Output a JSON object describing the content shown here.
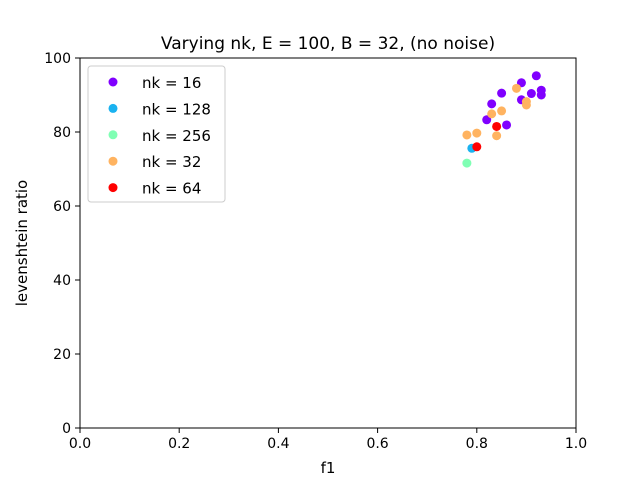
{
  "chart_data": {
    "type": "scatter",
    "title": "Varying nk, E = 100, B = 32, (no noise)",
    "xlabel": "f1",
    "ylabel": "levenshtein ratio",
    "xlim": [
      0.0,
      1.0
    ],
    "ylim": [
      0,
      100
    ],
    "x_ticks": [
      "0.0",
      "0.2",
      "0.4",
      "0.6",
      "0.8",
      "1.0"
    ],
    "x_tick_values": [
      0.0,
      0.2,
      0.4,
      0.6,
      0.8,
      1.0
    ],
    "y_ticks": [
      "0",
      "20",
      "40",
      "60",
      "80",
      "100"
    ],
    "y_tick_values": [
      0,
      20,
      40,
      60,
      80,
      100
    ],
    "grid": false,
    "legend_position": "top-left",
    "series": [
      {
        "name": "nk = 16",
        "color": "#8000ff",
        "points": [
          [
            0.82,
            83.3
          ],
          [
            0.83,
            87.6
          ],
          [
            0.85,
            90.5
          ],
          [
            0.86,
            81.9
          ],
          [
            0.89,
            93.3
          ],
          [
            0.89,
            88.7
          ],
          [
            0.91,
            90.4
          ],
          [
            0.92,
            95.2
          ],
          [
            0.93,
            91.3
          ],
          [
            0.93,
            90.0
          ]
        ]
      },
      {
        "name": "nk = 128",
        "color": "#1ab2f0",
        "points": [
          [
            0.79,
            75.6
          ]
        ]
      },
      {
        "name": "nk = 256",
        "color": "#80ffb4",
        "points": [
          [
            0.78,
            71.6
          ]
        ]
      },
      {
        "name": "nk = 32",
        "color": "#ffb360",
        "points": [
          [
            0.78,
            79.2
          ],
          [
            0.8,
            79.7
          ],
          [
            0.83,
            84.9
          ],
          [
            0.84,
            79.0
          ],
          [
            0.85,
            85.7
          ],
          [
            0.88,
            91.8
          ],
          [
            0.9,
            88.2
          ],
          [
            0.9,
            87.3
          ]
        ]
      },
      {
        "name": "nk = 64",
        "color": "#ff0000",
        "points": [
          [
            0.8,
            76.0
          ],
          [
            0.84,
            81.5
          ]
        ]
      }
    ]
  }
}
